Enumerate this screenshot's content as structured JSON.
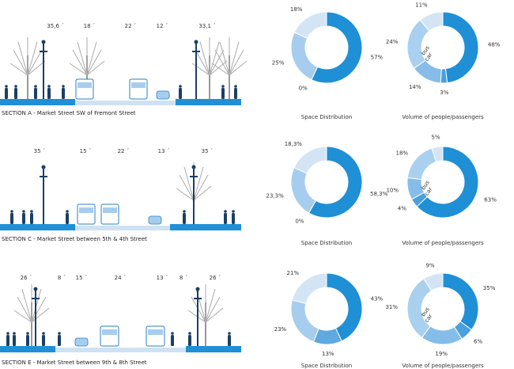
{
  "sections": [
    {
      "caption": "SECTION A - Market Street  SW of Fremont Street",
      "dimensions": [
        "35,6 ´",
        "18 ´",
        "22 ´",
        "12 ´",
        "33,1 ´"
      ],
      "charts": [
        {
          "type": "pie",
          "title": "Space Distribution",
          "values": [
            57,
            0,
            25,
            18
          ],
          "value_labels": [
            "57%",
            "0%",
            "25%",
            "18%"
          ],
          "colors": [
            "#1f8fd6",
            "#5fa9e0",
            "#a7cdee",
            "#d3e5f5"
          ]
        },
        {
          "type": "pie",
          "title": "Volume of people/passengers",
          "values": [
            48,
            3,
            14,
            24,
            11
          ],
          "value_labels": [
            "48%",
            "3%",
            "14%",
            "24%",
            "11%"
          ],
          "annotations": [
            "bus",
            "car"
          ],
          "colors": [
            "#1f8fd6",
            "#4a9fdd",
            "#86bde8",
            "#a9d0ef",
            "#d3e5f5"
          ]
        }
      ]
    },
    {
      "caption": "SECTION C - Market Street  between 5th & 4th Street",
      "dimensions": [
        "35 ´",
        "15 ´",
        "22 ´",
        "13 ´",
        "35 ´"
      ],
      "charts": [
        {
          "type": "pie",
          "title": "Space Distribution",
          "values": [
            58.3,
            0,
            23.3,
            18.3
          ],
          "value_labels": [
            "58,3%",
            "0%",
            "23,3%",
            "18,3%"
          ],
          "colors": [
            "#1f8fd6",
            "#5fa9e0",
            "#a7cdee",
            "#d3e5f5"
          ]
        },
        {
          "type": "pie",
          "title": "Volume of people/passengers",
          "values": [
            63,
            4,
            10,
            18,
            5
          ],
          "value_labels": [
            "63%",
            "4%",
            "10%",
            "18%",
            "5%"
          ],
          "annotations": [
            "bus",
            "car"
          ],
          "colors": [
            "#1f8fd6",
            "#4a9fdd",
            "#86bde8",
            "#a9d0ef",
            "#d3e5f5"
          ]
        }
      ]
    },
    {
      "caption": "SECTION E - Market Street  between  9th & 8th Street",
      "dimensions": [
        "26 ´",
        "8 ´",
        "15 ´",
        "24 ´",
        "13 ´",
        "8 ´",
        "26 ´"
      ],
      "charts": [
        {
          "type": "pie",
          "title": "Space Distribution",
          "values": [
            43,
            13,
            23,
            21
          ],
          "value_labels": [
            "43%",
            "13%",
            "23%",
            "21%"
          ],
          "colors": [
            "#1f8fd6",
            "#5fa9e0",
            "#a7cdee",
            "#d3e5f5"
          ]
        },
        {
          "type": "pie",
          "title": "Volume of people/passengers",
          "values": [
            35,
            6,
            19,
            31,
            9
          ],
          "value_labels": [
            "35%",
            "6%",
            "19%",
            "31%",
            "9%"
          ],
          "annotations": [
            "bus",
            "car"
          ],
          "colors": [
            "#1f8fd6",
            "#4a9fdd",
            "#86bde8",
            "#a9d0ef",
            "#d3e5f5"
          ]
        }
      ]
    }
  ]
}
